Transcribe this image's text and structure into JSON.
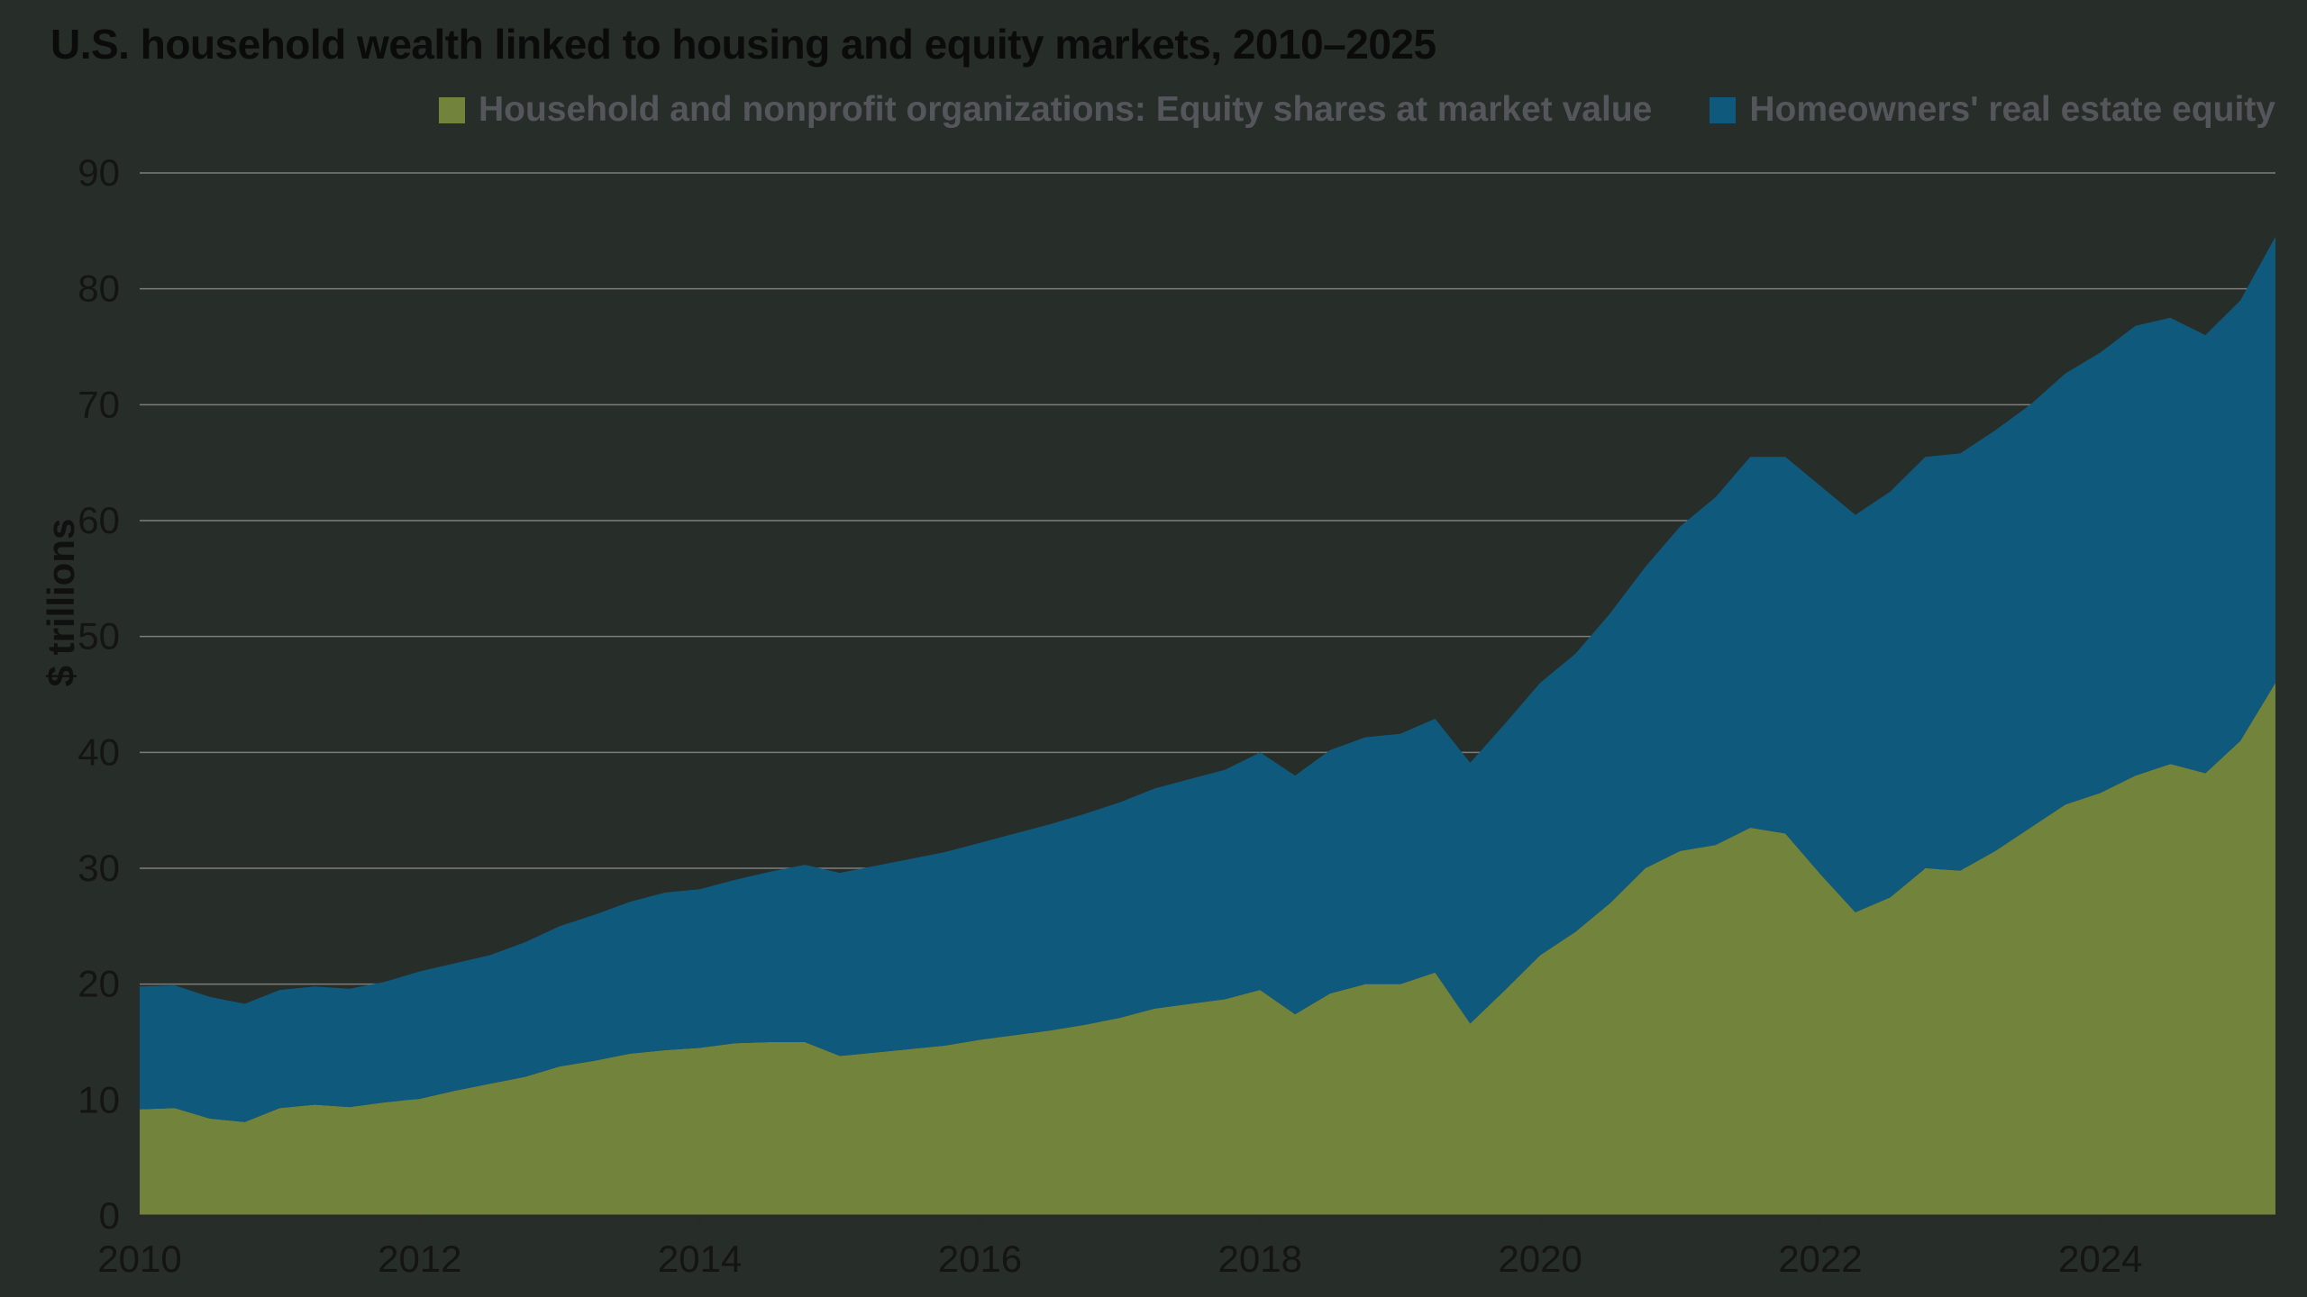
{
  "title": "U.S. household wealth linked to housing and equity markets, 2010–2025",
  "ylabel": "$ trillions",
  "colors": {
    "background": "#272d28",
    "equity_green": "#72833c",
    "real_estate_blue": "#0f5a7c",
    "gridline": "#8c8c8c",
    "baseline": "#2a2a2a",
    "tick_text": "#141414",
    "legend_text": "#55565c",
    "title_text": "#0b0b0b"
  },
  "chart_data": {
    "type": "area",
    "stacked": true,
    "title": "U.S. household wealth linked to housing and equity markets, 2010–2025",
    "xlabel": "",
    "ylabel": "$ trillions",
    "units": "$ trillions",
    "grid": "horizontal",
    "legend_position": "top-right",
    "xlim": [
      2010,
      2025.25
    ],
    "ylim": [
      0,
      90
    ],
    "xticks": [
      2010,
      2012,
      2014,
      2016,
      2018,
      2020,
      2022,
      2024
    ],
    "yticks": [
      0,
      10,
      20,
      30,
      40,
      50,
      60,
      70,
      80,
      90
    ],
    "x": [
      2010,
      2010.25,
      2010.5,
      2010.75,
      2011,
      2011.25,
      2011.5,
      2011.75,
      2012,
      2012.25,
      2012.5,
      2012.75,
      2013,
      2013.25,
      2013.5,
      2013.75,
      2014,
      2014.25,
      2014.5,
      2014.75,
      2015,
      2015.25,
      2015.5,
      2015.75,
      2016,
      2016.25,
      2016.5,
      2016.75,
      2017,
      2017.25,
      2017.5,
      2017.75,
      2018,
      2018.25,
      2018.5,
      2018.75,
      2019,
      2019.25,
      2019.5,
      2019.75,
      2020,
      2020.25,
      2020.5,
      2020.75,
      2021,
      2021.25,
      2021.5,
      2021.75,
      2022,
      2022.25,
      2022.5,
      2022.75,
      2023,
      2023.25,
      2023.5,
      2023.75,
      2024,
      2024.25,
      2024.5,
      2024.75,
      2025,
      2025.25
    ],
    "series": [
      {
        "name": "Household and nonprofit organizations: Equity shares at market value",
        "color": "#72833c",
        "values": [
          9.2,
          9.3,
          8.4,
          8.1,
          9.3,
          9.6,
          9.4,
          9.8,
          10.1,
          10.8,
          11.4,
          12.0,
          12.9,
          13.4,
          14.0,
          14.3,
          14.5,
          14.9,
          15.0,
          15.0,
          13.8,
          14.1,
          14.4,
          14.7,
          15.2,
          15.6,
          16.0,
          16.5,
          17.1,
          17.9,
          18.3,
          18.7,
          19.5,
          17.4,
          19.2,
          20.0,
          20.0,
          21.0,
          16.6,
          19.5,
          22.5,
          24.5,
          27.0,
          30.0,
          31.5,
          32.0,
          33.5,
          33.0,
          29.5,
          26.2,
          27.5,
          30.0,
          29.8,
          31.5,
          33.5,
          35.5,
          36.5,
          38.0,
          39.0,
          38.2,
          41.0,
          46.0
        ]
      },
      {
        "name": "Homeowners' real estate equity",
        "color": "#0f5a7c",
        "values": [
          10.6,
          10.6,
          10.5,
          10.2,
          10.2,
          10.2,
          10.2,
          10.4,
          11.0,
          11.0,
          11.1,
          11.6,
          12.1,
          12.6,
          13.1,
          13.6,
          13.7,
          14.1,
          14.7,
          15.3,
          15.8,
          16.1,
          16.4,
          16.7,
          17.0,
          17.4,
          17.8,
          18.2,
          18.6,
          19.0,
          19.4,
          19.8,
          20.5,
          20.6,
          21.0,
          21.3,
          21.6,
          21.9,
          22.5,
          23.0,
          23.5,
          24.0,
          25.0,
          26.0,
          28.0,
          30.0,
          32.0,
          32.5,
          33.5,
          34.3,
          35.0,
          35.5,
          36.0,
          36.3,
          36.5,
          37.2,
          38.0,
          38.8,
          38.5,
          37.8,
          38.0,
          38.5
        ]
      }
    ]
  }
}
